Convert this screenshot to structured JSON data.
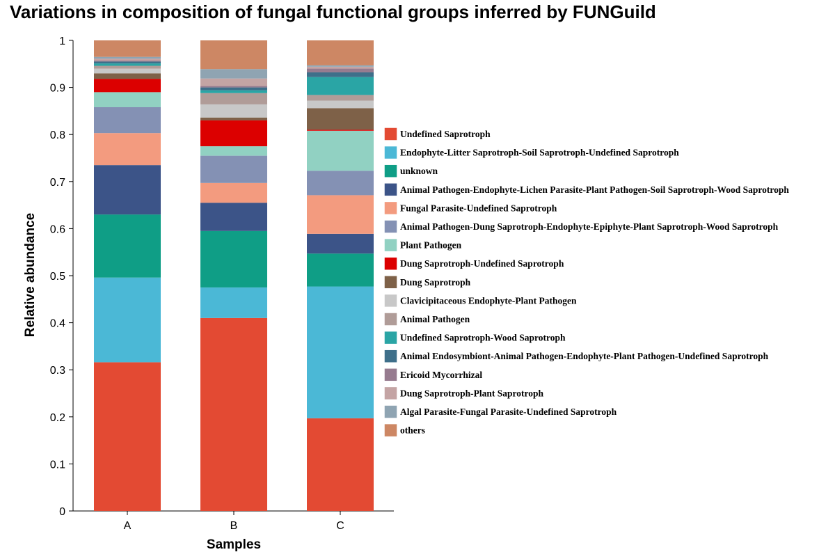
{
  "chart_data": {
    "type": "bar",
    "stacked": true,
    "title": "Variations in composition of fungal functional groups inferred by FUNGuild",
    "xlabel": "Samples",
    "ylabel": "Relative abundance",
    "ylim": [
      0,
      1
    ],
    "yticks": [
      "0",
      "0.1",
      "0.2",
      "0.3",
      "0.4",
      "0.5",
      "0.6",
      "0.7",
      "0.8",
      "0.9",
      "1"
    ],
    "categories": [
      "A",
      "B",
      "C"
    ],
    "legend_position": "right",
    "series": [
      {
        "name": "Undefined Saprotroph",
        "color": "#e34a33",
        "values": [
          0.316,
          0.41,
          0.197
        ]
      },
      {
        "name": "Endophyte-Litter Saprotroph-Soil Saprotroph-Undefined Saprotroph",
        "color": "#4bb8d6",
        "values": [
          0.18,
          0.065,
          0.28
        ]
      },
      {
        "name": "unknown",
        "color": "#0f9e86",
        "values": [
          0.134,
          0.12,
          0.07
        ]
      },
      {
        "name": "Animal Pathogen-Endophyte-Lichen Parasite-Plant Pathogen-Soil Saprotroph-Wood Saprotroph",
        "color": "#3c5488",
        "values": [
          0.105,
          0.06,
          0.042
        ]
      },
      {
        "name": "Fungal Parasite-Undefined Saprotroph",
        "color": "#f39b7f",
        "values": [
          0.068,
          0.042,
          0.082
        ]
      },
      {
        "name": "Animal Pathogen-Dung Saprotroph-Endophyte-Epiphyte-Plant Saprotroph-Wood Saprotroph",
        "color": "#8491b4",
        "values": [
          0.055,
          0.058,
          0.052
        ]
      },
      {
        "name": "Plant Pathogen",
        "color": "#91d1c2",
        "values": [
          0.032,
          0.02,
          0.085
        ]
      },
      {
        "name": "Dung Saprotroph-Undefined Saprotroph",
        "color": "#dc0000",
        "values": [
          0.028,
          0.055,
          0.002
        ]
      },
      {
        "name": "Dung Saprotroph",
        "color": "#7e6148",
        "values": [
          0.012,
          0.006,
          0.046
        ]
      },
      {
        "name": "Clavicipitaceous Endophyte-Plant Pathogen",
        "color": "#c8c8c8",
        "values": [
          0.01,
          0.028,
          0.016
        ]
      },
      {
        "name": "Animal Pathogen",
        "color": "#b09c98",
        "values": [
          0.006,
          0.024,
          0.012
        ]
      },
      {
        "name": "Undefined Saprotroph-Wood Saprotroph",
        "color": "#2aa5a5",
        "values": [
          0.005,
          0.006,
          0.038
        ]
      },
      {
        "name": "Animal Endosymbiont-Animal Pathogen-Endophyte-Plant Pathogen-Undefined Saprotroph",
        "color": "#3e6f8a",
        "values": [
          0.004,
          0.006,
          0.01
        ]
      },
      {
        "name": "Ericoid Mycorrhizal",
        "color": "#967b8f",
        "values": [
          0.002,
          0.003,
          0.008
        ]
      },
      {
        "name": "Dung Saprotroph-Plant Saprotroph",
        "color": "#c4a4a4",
        "values": [
          0.004,
          0.016,
          0.004
        ]
      },
      {
        "name": "Algal Parasite-Fungal Parasite-Undefined Saprotroph",
        "color": "#8fa4b2",
        "values": [
          0.004,
          0.02,
          0.003
        ]
      },
      {
        "name": "others",
        "color": "#cd8764",
        "values": [
          0.035,
          0.061,
          0.053
        ]
      }
    ]
  }
}
